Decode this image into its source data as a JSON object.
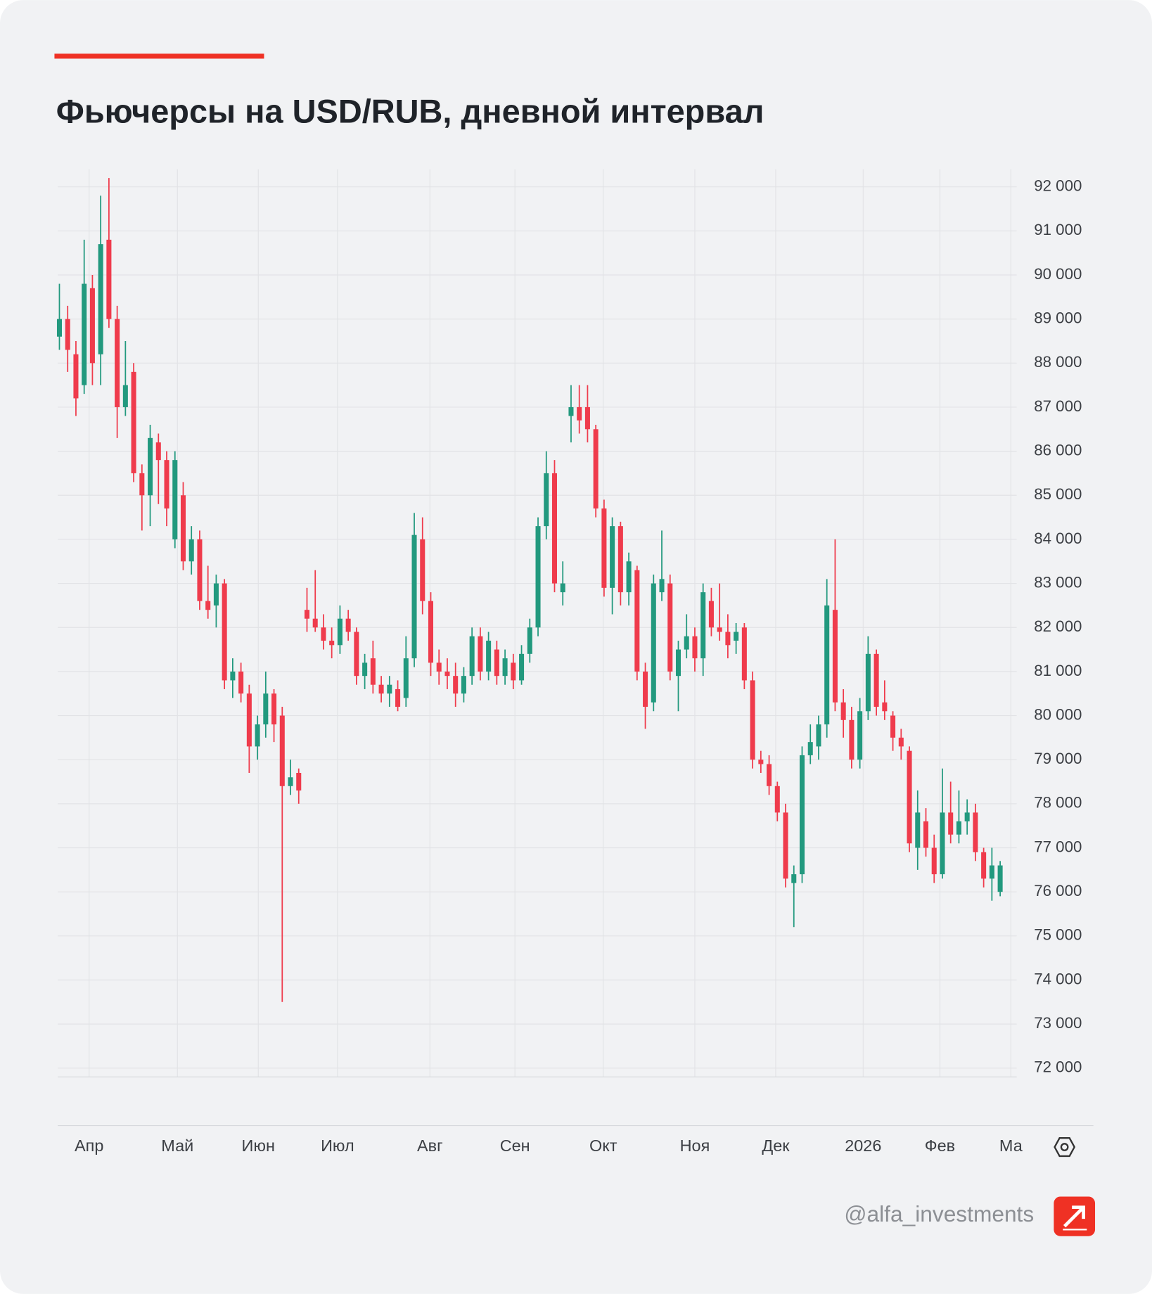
{
  "chart_data": {
    "type": "candlestick",
    "title": "Фьючерсы на USD/RUB, дневной интервал",
    "watermark": "@alfa_investments",
    "up_color": "#22997e",
    "down_color": "#ef3b4c",
    "grid": true,
    "xlim": [
      -1,
      232
    ],
    "ylim": [
      71800,
      92400
    ],
    "xticks": [
      {
        "value": 7.2,
        "label": "Апр"
      },
      {
        "value": 28.6,
        "label": "Май"
      },
      {
        "value": 48.2,
        "label": "Июн"
      },
      {
        "value": 67.4,
        "label": "Июл"
      },
      {
        "value": 89.8,
        "label": "Авг"
      },
      {
        "value": 110.4,
        "label": "Сен"
      },
      {
        "value": 131.8,
        "label": "Окт"
      },
      {
        "value": 154,
        "label": "Ноя"
      },
      {
        "value": 173.6,
        "label": "Дек"
      },
      {
        "value": 194.8,
        "label": "2026"
      },
      {
        "value": 213.4,
        "label": "Фев"
      },
      {
        "value": 230.6,
        "label": "Ма"
      }
    ],
    "yticks": [
      {
        "value": 92000,
        "label": "92 000"
      },
      {
        "value": 91000,
        "label": "91 000"
      },
      {
        "value": 90000,
        "label": "90 000"
      },
      {
        "value": 89000,
        "label": "89 000"
      },
      {
        "value": 88000,
        "label": "88 000"
      },
      {
        "value": 87000,
        "label": "87 000"
      },
      {
        "value": 86000,
        "label": "86 000"
      },
      {
        "value": 85000,
        "label": "85 000"
      },
      {
        "value": 84000,
        "label": "84 000"
      },
      {
        "value": 83000,
        "label": "83 000"
      },
      {
        "value": 82000,
        "label": "82 000"
      },
      {
        "value": 81000,
        "label": "81 000"
      },
      {
        "value": 80000,
        "label": "80 000"
      },
      {
        "value": 79000,
        "label": "79 000"
      },
      {
        "value": 78000,
        "label": "78 000"
      },
      {
        "value": 77000,
        "label": "77 000"
      },
      {
        "value": 76000,
        "label": "76 000"
      },
      {
        "value": 75000,
        "label": "75 000"
      },
      {
        "value": 74000,
        "label": "74 000"
      },
      {
        "value": 73000,
        "label": "73 000"
      },
      {
        "value": 72000,
        "label": "72 000"
      }
    ],
    "x": [
      0,
      2,
      4,
      6,
      8,
      10,
      12,
      14,
      16,
      18,
      20,
      22,
      24,
      26,
      28,
      30,
      32,
      34,
      36,
      38,
      40,
      42,
      44,
      46,
      48,
      50,
      52,
      54,
      56,
      58,
      60,
      62,
      64,
      66,
      68,
      70,
      72,
      74,
      76,
      78,
      80,
      82,
      84,
      86,
      88,
      90,
      92,
      94,
      96,
      98,
      100,
      102,
      104,
      106,
      108,
      110,
      112,
      114,
      116,
      118,
      120,
      122,
      124,
      126,
      128,
      130,
      132,
      134,
      136,
      138,
      140,
      142,
      144,
      146,
      148,
      150,
      152,
      154,
      156,
      158,
      160,
      162,
      164,
      166,
      168,
      170,
      172,
      174,
      176,
      178,
      180,
      182,
      184,
      186,
      188,
      190,
      192,
      194,
      196,
      198,
      200,
      202,
      204,
      206,
      208,
      210,
      212,
      214,
      216,
      218,
      220,
      222,
      224,
      226,
      228
    ],
    "candles": [
      [
        88600,
        89800,
        88300,
        89000
      ],
      [
        89000,
        89300,
        87800,
        88300
      ],
      [
        88200,
        88500,
        86800,
        87200
      ],
      [
        87500,
        90800,
        87300,
        89800
      ],
      [
        89700,
        90000,
        87500,
        88000
      ],
      [
        88200,
        91800,
        87500,
        90700
      ],
      [
        90800,
        92200,
        88800,
        89000
      ],
      [
        89000,
        89300,
        86300,
        87000
      ],
      [
        87000,
        88500,
        86800,
        87500
      ],
      [
        87800,
        88000,
        85300,
        85500
      ],
      [
        85500,
        85700,
        84200,
        85000
      ],
      [
        85000,
        86600,
        84300,
        86300
      ],
      [
        86200,
        86400,
        84800,
        85800
      ],
      [
        85800,
        86000,
        84300,
        84700
      ],
      [
        84000,
        86000,
        83800,
        85800
      ],
      [
        85000,
        85300,
        83300,
        83500
      ],
      [
        83500,
        84300,
        83200,
        84000
      ],
      [
        84000,
        84200,
        82400,
        82600
      ],
      [
        82600,
        83400,
        82200,
        82400
      ],
      [
        82500,
        83200,
        82000,
        83000
      ],
      [
        83000,
        83100,
        80600,
        80800
      ],
      [
        80800,
        81300,
        80400,
        81000
      ],
      [
        81000,
        81200,
        80300,
        80500
      ],
      [
        80500,
        80700,
        78700,
        79300
      ],
      [
        79300,
        80000,
        79000,
        79800
      ],
      [
        79800,
        81000,
        79500,
        80500
      ],
      [
        80500,
        80600,
        79400,
        79800
      ],
      [
        80000,
        80200,
        73500,
        78400
      ],
      [
        78400,
        79000,
        78200,
        78600
      ],
      [
        78700,
        78800,
        78000,
        78300
      ],
      [
        82400,
        82900,
        81900,
        82200
      ],
      [
        82200,
        83300,
        81900,
        82000
      ],
      [
        82000,
        82300,
        81500,
        81700
      ],
      [
        81700,
        82000,
        81300,
        81600
      ],
      [
        81600,
        82500,
        81400,
        82200
      ],
      [
        82200,
        82400,
        81700,
        81900
      ],
      [
        81900,
        82000,
        80700,
        80900
      ],
      [
        80900,
        81400,
        80600,
        81200
      ],
      [
        81300,
        81700,
        80500,
        80700
      ],
      [
        80700,
        80900,
        80300,
        80500
      ],
      [
        80500,
        80900,
        80200,
        80700
      ],
      [
        80600,
        80800,
        80100,
        80200
      ],
      [
        80400,
        81800,
        80200,
        81300
      ],
      [
        81300,
        84600,
        81100,
        84100
      ],
      [
        84000,
        84500,
        82300,
        82600
      ],
      [
        82600,
        82800,
        80900,
        81200
      ],
      [
        81200,
        81500,
        80700,
        81000
      ],
      [
        81000,
        81300,
        80600,
        80900
      ],
      [
        80900,
        81200,
        80200,
        80500
      ],
      [
        80500,
        81100,
        80300,
        80900
      ],
      [
        80900,
        82000,
        80700,
        81800
      ],
      [
        81800,
        82000,
        80800,
        81000
      ],
      [
        81000,
        81900,
        80800,
        81700
      ],
      [
        81500,
        81700,
        80700,
        80900
      ],
      [
        80900,
        81500,
        80700,
        81300
      ],
      [
        81200,
        81400,
        80600,
        80800
      ],
      [
        80800,
        81600,
        80700,
        81400
      ],
      [
        81400,
        82200,
        81200,
        82000
      ],
      [
        82000,
        84500,
        81800,
        84300
      ],
      [
        84300,
        86000,
        84000,
        85500
      ],
      [
        85500,
        85800,
        82800,
        83000
      ],
      [
        82800,
        83500,
        82500,
        83000
      ],
      [
        86800,
        87500,
        86200,
        87000
      ],
      [
        87000,
        87500,
        86400,
        86700
      ],
      [
        87000,
        87500,
        86200,
        86500
      ],
      [
        86500,
        86600,
        84500,
        84700
      ],
      [
        84700,
        84900,
        82700,
        82900
      ],
      [
        82900,
        84500,
        82300,
        84300
      ],
      [
        84300,
        84400,
        82500,
        82800
      ],
      [
        82800,
        83700,
        82500,
        83500
      ],
      [
        83300,
        83400,
        80800,
        81000
      ],
      [
        81000,
        81200,
        79700,
        80200
      ],
      [
        80300,
        83200,
        80100,
        83000
      ],
      [
        82800,
        84200,
        82600,
        83100
      ],
      [
        83000,
        83200,
        80800,
        81000
      ],
      [
        80900,
        81700,
        80100,
        81500
      ],
      [
        81500,
        82300,
        81300,
        81800
      ],
      [
        81800,
        82000,
        81000,
        81300
      ],
      [
        81300,
        83000,
        80900,
        82800
      ],
      [
        82600,
        82900,
        81800,
        82000
      ],
      [
        82000,
        83000,
        81700,
        81900
      ],
      [
        81900,
        82300,
        81300,
        81600
      ],
      [
        81700,
        82100,
        81400,
        81900
      ],
      [
        82000,
        82100,
        80600,
        80800
      ],
      [
        80800,
        81000,
        78800,
        79000
      ],
      [
        79000,
        79200,
        78700,
        78900
      ],
      [
        78900,
        79100,
        78200,
        78400
      ],
      [
        78400,
        78500,
        77600,
        77800
      ],
      [
        77800,
        78000,
        76100,
        76300
      ],
      [
        76200,
        76600,
        75200,
        76400
      ],
      [
        76400,
        79300,
        76200,
        79100
      ],
      [
        79100,
        79800,
        78900,
        79400
      ],
      [
        79300,
        80000,
        79000,
        79800
      ],
      [
        79800,
        83100,
        79500,
        82500
      ],
      [
        82400,
        84000,
        80100,
        80300
      ],
      [
        80300,
        80600,
        79500,
        79900
      ],
      [
        79900,
        80200,
        78800,
        79000
      ],
      [
        79000,
        80400,
        78800,
        80100
      ],
      [
        80100,
        81800,
        79900,
        81400
      ],
      [
        81400,
        81500,
        80000,
        80200
      ],
      [
        80300,
        80800,
        79900,
        80100
      ],
      [
        80000,
        80100,
        79200,
        79500
      ],
      [
        79500,
        79700,
        79000,
        79300
      ],
      [
        79200,
        79300,
        76900,
        77100
      ],
      [
        77000,
        78300,
        76500,
        77800
      ],
      [
        77600,
        77900,
        76800,
        77000
      ],
      [
        77000,
        77300,
        76200,
        76400
      ],
      [
        76400,
        78800,
        76300,
        77800
      ],
      [
        77800,
        78500,
        77100,
        77300
      ],
      [
        77300,
        78300,
        77100,
        77600
      ],
      [
        77600,
        78100,
        77300,
        77800
      ],
      [
        77800,
        78000,
        76700,
        76900
      ],
      [
        76900,
        77000,
        76100,
        76300
      ],
      [
        76300,
        77000,
        75800,
        76600
      ],
      [
        76000,
        76700,
        75900,
        76600
      ]
    ]
  }
}
